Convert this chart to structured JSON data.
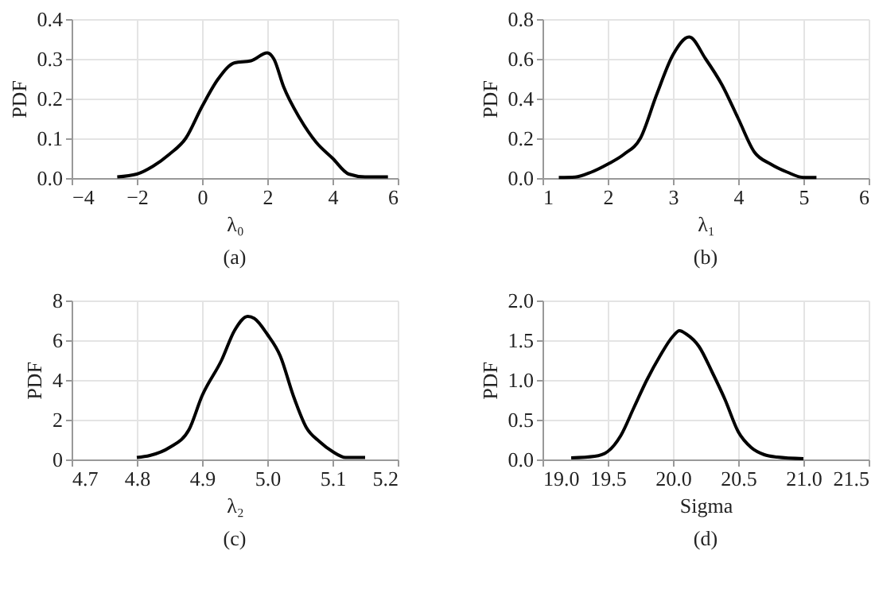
{
  "chart_data": [
    {
      "type": "line",
      "xlabel": "λ₀",
      "ylabel": "PDF",
      "annotations": [
        "(a)"
      ],
      "xlim": [
        -4,
        6
      ],
      "xticks": [
        -4,
        -2,
        0,
        2,
        4,
        6
      ],
      "ylim": [
        0,
        0.4
      ],
      "yticks": [
        {
          "value": 0,
          "label": "0.0"
        },
        0.1,
        0.2,
        0.3,
        0.4
      ],
      "grid": true,
      "x": [
        -2.6,
        -2,
        -1.5,
        -1,
        -0.5,
        0,
        0.5,
        1,
        1.5,
        2,
        2.2,
        2.5,
        3,
        3.5,
        4,
        4.5,
        5,
        5.7
      ],
      "series": [
        {
          "color": "#000000",
          "values": [
            0.003,
            0.01,
            0.03,
            0.06,
            0.1,
            0.18,
            0.25,
            0.29,
            0.295,
            0.315,
            0.3,
            0.23,
            0.15,
            0.09,
            0.05,
            0.01,
            0.003,
            0.003
          ]
        }
      ]
    },
    {
      "type": "line",
      "xlabel": "λ₁",
      "ylabel": "PDF",
      "annotations": [
        "(b)"
      ],
      "xlim": [
        1,
        6
      ],
      "xticks": [
        1,
        2,
        3,
        4,
        5,
        6
      ],
      "ylim": [
        0,
        0.8
      ],
      "yticks": [
        {
          "value": 0,
          "label": "0.0"
        },
        0.2,
        0.4,
        0.6,
        0.8
      ],
      "grid": true,
      "x": [
        1.25,
        1.5,
        1.75,
        2,
        2.25,
        2.5,
        2.75,
        3,
        3.25,
        3.5,
        3.75,
        4,
        4.25,
        4.5,
        4.75,
        5,
        5.2
      ],
      "series": [
        {
          "color": "#000000",
          "values": [
            0.003,
            0.005,
            0.03,
            0.07,
            0.12,
            0.2,
            0.42,
            0.62,
            0.71,
            0.6,
            0.47,
            0.3,
            0.13,
            0.07,
            0.03,
            0.003,
            0.003
          ]
        }
      ]
    },
    {
      "type": "line",
      "xlabel": "λ₂",
      "ylabel": "PDF",
      "annotations": [
        "(c)"
      ],
      "xlim": [
        4.7,
        5.2
      ],
      "xticks": [
        4.7,
        4.8,
        4.9,
        {
          "value": 5,
          "label": "5.0"
        },
        5.1,
        5.2
      ],
      "ylim": [
        0,
        8
      ],
      "yticks": [
        0,
        2,
        4,
        6,
        8
      ],
      "grid": true,
      "x": [
        4.8,
        4.82,
        4.85,
        4.88,
        4.9,
        4.93,
        4.95,
        4.97,
        4.98,
        5.0,
        5.02,
        5.04,
        5.06,
        5.08,
        5.1,
        5.12,
        5.15
      ],
      "series": [
        {
          "color": "#000000",
          "values": [
            0.1,
            0.2,
            0.6,
            1.5,
            3.2,
            5.0,
            6.5,
            7.2,
            7.1,
            6.3,
            5.2,
            3.2,
            1.6,
            0.9,
            0.4,
            0.1,
            0.1
          ]
        }
      ]
    },
    {
      "type": "line",
      "xlabel": "Sigma",
      "ylabel": "PDF",
      "annotations": [
        "(d)"
      ],
      "xlim": [
        19,
        21.5
      ],
      "xticks": [
        {
          "value": 19,
          "label": "19.0"
        },
        19.5,
        {
          "value": 20,
          "label": "20.0"
        },
        20.5,
        {
          "value": 21,
          "label": "21.0"
        },
        21.5
      ],
      "ylim": [
        0,
        2
      ],
      "yticks": [
        {
          "value": 0,
          "label": "0.0"
        },
        0.5,
        {
          "value": 1,
          "label": "1.0"
        },
        1.5,
        {
          "value": 2,
          "label": "2.0"
        }
      ],
      "grid": true,
      "x": [
        19.22,
        19.4,
        19.5,
        19.6,
        19.7,
        19.8,
        19.9,
        20.0,
        20.05,
        20.1,
        20.2,
        20.3,
        20.4,
        20.5,
        20.6,
        20.7,
        20.8,
        21.0
      ],
      "series": [
        {
          "color": "#000000",
          "values": [
            0.02,
            0.04,
            0.1,
            0.3,
            0.65,
            1.0,
            1.3,
            1.55,
            1.62,
            1.58,
            1.42,
            1.1,
            0.75,
            0.35,
            0.15,
            0.06,
            0.03,
            0.01
          ]
        }
      ]
    }
  ]
}
